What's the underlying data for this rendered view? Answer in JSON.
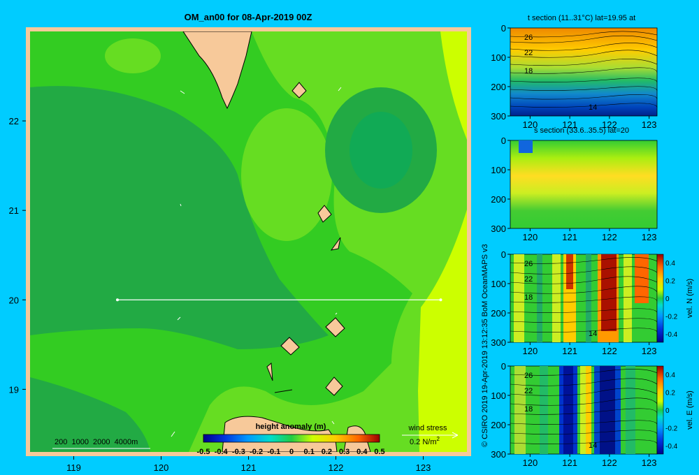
{
  "colors": {
    "background": "#00ccff",
    "land": "#f7c99a",
    "map_green_light": "#66dd22",
    "map_green_mid": "#33cc22",
    "map_green_dark": "#22aa44",
    "map_yellow": "#ccff00"
  },
  "chart_data": [
    {
      "id": "main_map",
      "type": "heatmap",
      "title": "OM_an00 for 08-Apr-2019 00Z",
      "x_ticks": [
        "119",
        "120",
        "121",
        "122",
        "123"
      ],
      "y_ticks": [
        "22",
        "21",
        "20",
        "19"
      ],
      "xlim": [
        118.5,
        123.5
      ],
      "ylim": [
        18.3,
        23.0
      ],
      "section_line": {
        "lat": 20,
        "lon_start": 119.5,
        "lon_end": 123.2
      },
      "colorbar": {
        "label": "height anomaly (m)",
        "ticks": [
          "-0.5",
          "-0.4",
          "-0.3",
          "-0.2",
          "-0.1",
          "0",
          "0.1",
          "0.2",
          "0.3",
          "0.4",
          "0.5"
        ]
      },
      "depth_legend": "200  1000  2000  4000m",
      "wind_legend": {
        "label": "wind stress",
        "value": "0.2 N/m",
        "superscript": "2"
      }
    },
    {
      "id": "t_section",
      "type": "heatmap",
      "title": "t section (11..31°C) lat=19.95 at",
      "x_ticks": [
        "120",
        "121",
        "122",
        "123"
      ],
      "y_ticks": [
        "0",
        "100",
        "200",
        "300"
      ],
      "contour_labels": [
        "26",
        "22",
        "18",
        "14"
      ]
    },
    {
      "id": "s_section",
      "type": "heatmap",
      "title": "s section (33.6..35.5) lat=20",
      "x_ticks": [
        "120",
        "121",
        "122",
        "123"
      ],
      "y_ticks": [
        "0",
        "100",
        "200",
        "300"
      ]
    },
    {
      "id": "vn_section",
      "type": "heatmap",
      "x_ticks": [
        "120",
        "121",
        "122",
        "123"
      ],
      "y_ticks": [
        "0",
        "100",
        "200",
        "300"
      ],
      "contour_labels": [
        "26",
        "22",
        "18",
        "14"
      ],
      "colorbar": {
        "label": "vel. N (m/s)",
        "ticks": [
          "0.4",
          "0.2",
          "0",
          "-0.2",
          "-0.4"
        ]
      }
    },
    {
      "id": "ve_section",
      "type": "heatmap",
      "x_ticks": [
        "120",
        "121",
        "122",
        "123"
      ],
      "y_ticks": [
        "0",
        "100",
        "200",
        "300"
      ],
      "contour_labels": [
        "26",
        "22",
        "18",
        "14"
      ],
      "colorbar": {
        "label": "vel. E (m/s)",
        "ticks": [
          "0.4",
          "0.2",
          "0",
          "-0.2",
          "-0.4"
        ]
      }
    }
  ],
  "credit": "© CSIRO 2019   19-Apr-2019 13:12:35 BoM OceanMAPS v3"
}
